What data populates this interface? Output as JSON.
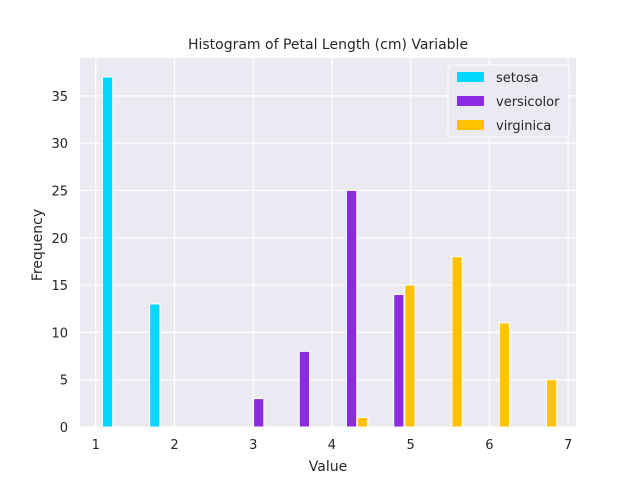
{
  "chart_data": {
    "type": "bar",
    "title": "Histogram of Petal Length (cm)  Variable",
    "xlabel": "Value",
    "ylabel": "Frequency",
    "xlim": [
      0.8,
      7.1
    ],
    "ylim": [
      0,
      39
    ],
    "x_ticks": [
      1,
      2,
      3,
      4,
      5,
      6,
      7
    ],
    "y_ticks": [
      0,
      5,
      10,
      15,
      20,
      25,
      30,
      35
    ],
    "grid": true,
    "legend_position": "top-right",
    "colors": {
      "background": "#eaeaf2",
      "grid": "#ffffff"
    },
    "series": [
      {
        "name": "setosa",
        "color": "#00d7ff",
        "bins": [
          {
            "x": 1.15,
            "value": 37
          },
          {
            "x": 1.75,
            "value": 13
          },
          {
            "x": 2.35,
            "value": 0
          },
          {
            "x": 2.95,
            "value": 0
          },
          {
            "x": 3.55,
            "value": 0
          },
          {
            "x": 4.15,
            "value": 0
          },
          {
            "x": 4.75,
            "value": 0
          },
          {
            "x": 5.35,
            "value": 0
          },
          {
            "x": 5.95,
            "value": 0
          },
          {
            "x": 6.55,
            "value": 0
          }
        ]
      },
      {
        "name": "versicolor",
        "color": "#8a2be2",
        "bins": [
          {
            "x": 1.15,
            "value": 0
          },
          {
            "x": 1.75,
            "value": 0
          },
          {
            "x": 2.35,
            "value": 0
          },
          {
            "x": 3.07,
            "value": 3
          },
          {
            "x": 3.65,
            "value": 8
          },
          {
            "x": 4.25,
            "value": 25
          },
          {
            "x": 4.85,
            "value": 14
          },
          {
            "x": 5.45,
            "value": 0
          },
          {
            "x": 6.05,
            "value": 0
          },
          {
            "x": 6.65,
            "value": 0
          }
        ]
      },
      {
        "name": "virginica",
        "color": "#ffc200",
        "bins": [
          {
            "x": 4.39,
            "value": 1
          },
          {
            "x": 4.99,
            "value": 15
          },
          {
            "x": 5.59,
            "value": 18
          },
          {
            "x": 6.19,
            "value": 11
          },
          {
            "x": 6.79,
            "value": 5
          }
        ]
      }
    ]
  }
}
